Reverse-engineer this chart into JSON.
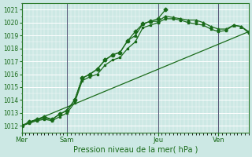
{
  "bg_color": "#cce8e4",
  "grid_color": "#ffffff",
  "line_color": "#1a6b1a",
  "marker_color": "#1a6b1a",
  "xlabel": "Pression niveau de la mer( hPa )",
  "ylim": [
    1011.5,
    1021.5
  ],
  "yticks": [
    1012,
    1013,
    1014,
    1015,
    1016,
    1017,
    1018,
    1019,
    1020,
    1021
  ],
  "xlim": [
    0,
    30
  ],
  "day_ticks": [
    0,
    6,
    18,
    26
  ],
  "day_labels": [
    "Mer",
    "Sam",
    "Jeu",
    "Ven"
  ],
  "series1_x": [
    0,
    1,
    2,
    3,
    4,
    5,
    6,
    7,
    8,
    9,
    10,
    11,
    12,
    13,
    14,
    15,
    16,
    17,
    18,
    19
  ],
  "series1_y": [
    1012.0,
    1012.3,
    1012.5,
    1012.7,
    1012.5,
    1012.9,
    1013.2,
    1014.0,
    1015.7,
    1016.0,
    1016.4,
    1017.1,
    1017.5,
    1017.7,
    1018.6,
    1019.3,
    1019.9,
    1020.1,
    1020.3,
    1021.0
  ],
  "series1_marker": "D",
  "series2_x": [
    0,
    1,
    2,
    3,
    4,
    5,
    6,
    7,
    8,
    9,
    10,
    11,
    12,
    13,
    14,
    15,
    16,
    17,
    18,
    19,
    20,
    21,
    22,
    23,
    24,
    25,
    26,
    27,
    28,
    29,
    30
  ],
  "series2_y": [
    1012.0,
    1012.3,
    1012.5,
    1012.6,
    1012.5,
    1012.9,
    1013.2,
    1014.0,
    1015.7,
    1016.0,
    1016.4,
    1017.1,
    1017.5,
    1017.7,
    1018.6,
    1019.0,
    1019.9,
    1020.1,
    1020.1,
    1020.5,
    1020.4,
    1020.3,
    1020.2,
    1020.2,
    1020.0,
    1019.7,
    1019.5,
    1019.5,
    1019.8,
    1019.7,
    1019.3
  ],
  "series2_marker": "^",
  "series3_x": [
    0,
    30
  ],
  "series3_y": [
    1012.0,
    1019.3
  ],
  "series4_x": [
    0,
    1,
    2,
    3,
    4,
    5,
    6,
    7,
    8,
    9,
    10,
    11,
    12,
    13,
    14,
    15,
    16,
    17,
    18,
    19,
    20,
    21,
    22,
    23,
    24,
    25,
    26,
    27,
    28,
    29,
    30
  ],
  "series4_y": [
    1012.0,
    1012.2,
    1012.4,
    1012.5,
    1012.4,
    1012.7,
    1013.0,
    1013.8,
    1015.5,
    1015.8,
    1016.0,
    1016.7,
    1017.1,
    1017.3,
    1018.0,
    1018.5,
    1019.6,
    1019.8,
    1020.0,
    1020.3,
    1020.3,
    1020.2,
    1020.0,
    1019.9,
    1019.8,
    1019.5,
    1019.3,
    1019.4,
    1019.8,
    1019.7,
    1019.2
  ],
  "series4_marker": "s"
}
